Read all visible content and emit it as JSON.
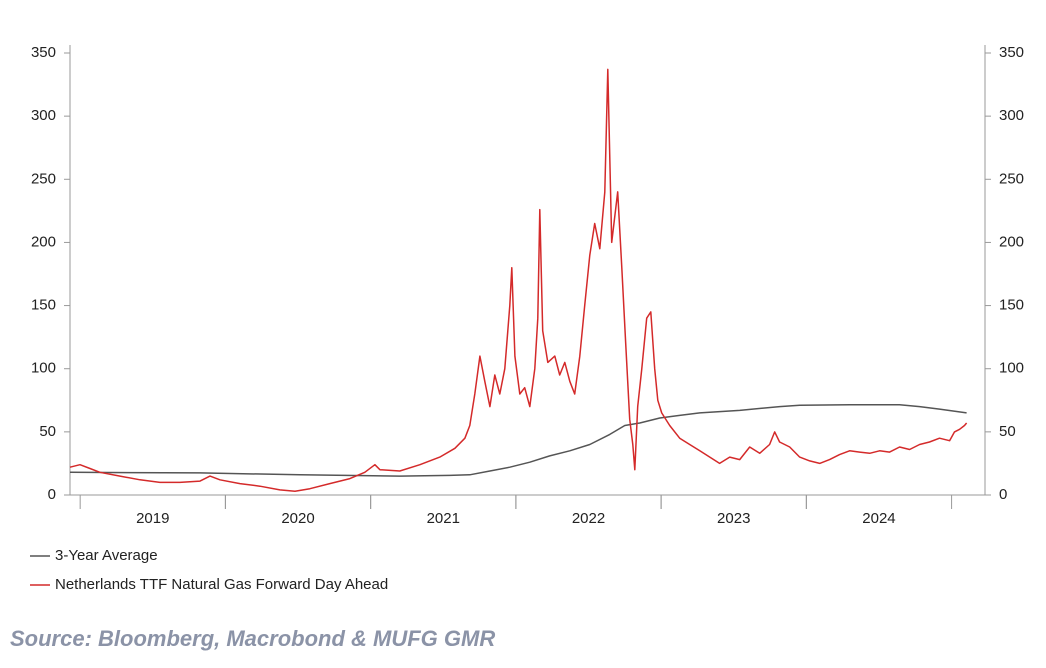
{
  "chart_data": {
    "type": "line",
    "source": "Source: Bloomberg, Macrobond & MUFG GMR",
    "xlim": [
      2018.93,
      2025.23
    ],
    "xticks": [
      {
        "value": 2019.5,
        "label": "2019"
      },
      {
        "value": 2020.5,
        "label": "2020"
      },
      {
        "value": 2021.5,
        "label": "2021"
      },
      {
        "value": 2022.5,
        "label": "2022"
      },
      {
        "value": 2023.5,
        "label": "2023"
      },
      {
        "value": 2024.5,
        "label": "2024"
      }
    ],
    "ylim": [
      0,
      350
    ],
    "yticks": [
      0,
      50,
      100,
      150,
      200,
      250,
      300,
      350
    ],
    "y2lim": [
      0,
      350
    ],
    "y2ticks": [
      0,
      50,
      100,
      150,
      200,
      250,
      300,
      350
    ],
    "legend": "bottom-left",
    "series": [
      {
        "name": "3-Year Average",
        "color": "#555555",
        "axis": "y2",
        "x": [
          2018.93,
          2019.825,
          2020.513,
          2021.201,
          2021.545,
          2021.683,
          2021.821,
          2021.958,
          2022.096,
          2022.233,
          2022.371,
          2022.509,
          2022.647,
          2022.75,
          2022.853,
          2022.991,
          2023.128,
          2023.266,
          2023.541,
          2023.816,
          2023.954,
          2024.298,
          2024.642,
          2024.78,
          2024.917,
          2025.103
        ],
        "values": [
          18,
          17.5,
          16,
          15,
          15.5,
          16,
          19,
          22,
          26,
          31,
          35,
          40,
          48,
          55,
          57,
          61,
          63,
          65,
          67,
          70,
          71,
          71.5,
          71.5,
          70,
          68,
          65
        ]
      },
      {
        "name": "Netherlands TTF Natural Gas Forward Day Ahead",
        "color": "#d42a2a",
        "x": [
          2018.93,
          2018.999,
          2019.068,
          2019.136,
          2019.274,
          2019.412,
          2019.549,
          2019.687,
          2019.825,
          2019.894,
          2019.962,
          2020.1,
          2020.238,
          2020.375,
          2020.479,
          2020.582,
          2020.719,
          2020.857,
          2020.96,
          2021.029,
          2021.064,
          2021.201,
          2021.339,
          2021.476,
          2021.58,
          2021.649,
          2021.683,
          2021.717,
          2021.752,
          2021.786,
          2021.821,
          2021.855,
          2021.889,
          2021.924,
          2021.958,
          2021.972,
          2021.993,
          2022.027,
          2022.061,
          2022.096,
          2022.13,
          2022.151,
          2022.165,
          2022.185,
          2022.22,
          2022.268,
          2022.302,
          2022.337,
          2022.371,
          2022.405,
          2022.44,
          2022.474,
          2022.509,
          2022.543,
          2022.578,
          2022.612,
          2022.633,
          2022.66,
          2022.701,
          2022.729,
          2022.756,
          2022.784,
          2022.805,
          2022.819,
          2022.839,
          2022.867,
          2022.901,
          2022.929,
          2022.956,
          2022.977,
          2023.004,
          2023.059,
          2023.128,
          2023.197,
          2023.266,
          2023.335,
          2023.403,
          2023.472,
          2023.541,
          2023.61,
          2023.679,
          2023.747,
          2023.782,
          2023.816,
          2023.885,
          2023.954,
          2024.023,
          2024.092,
          2024.16,
          2024.229,
          2024.298,
          2024.367,
          2024.436,
          2024.504,
          2024.573,
          2024.642,
          2024.711,
          2024.78,
          2024.848,
          2024.917,
          2024.986,
          2025.02,
          2025.055,
          2025.089,
          2025.103
        ],
        "values": [
          22,
          24,
          21,
          18,
          15,
          12,
          10,
          10,
          11,
          15,
          12,
          9,
          7,
          4,
          3,
          5,
          9,
          13,
          18,
          24,
          20,
          19,
          24,
          30,
          37,
          45,
          55,
          80,
          110,
          90,
          70,
          95,
          80,
          100,
          150,
          180,
          110,
          80,
          85,
          70,
          100,
          140,
          226,
          130,
          105,
          110,
          95,
          105,
          90,
          80,
          110,
          150,
          190,
          215,
          195,
          240,
          337,
          200,
          240,
          180,
          120,
          60,
          40,
          20,
          70,
          100,
          140,
          145,
          100,
          75,
          65,
          55,
          45,
          40,
          35,
          30,
          25,
          30,
          28,
          38,
          33,
          40,
          50,
          42,
          38,
          30,
          27,
          25,
          28,
          32,
          35,
          34,
          33,
          35,
          34,
          38,
          36,
          40,
          42,
          45,
          43,
          50,
          52,
          55,
          57
        ]
      }
    ]
  }
}
